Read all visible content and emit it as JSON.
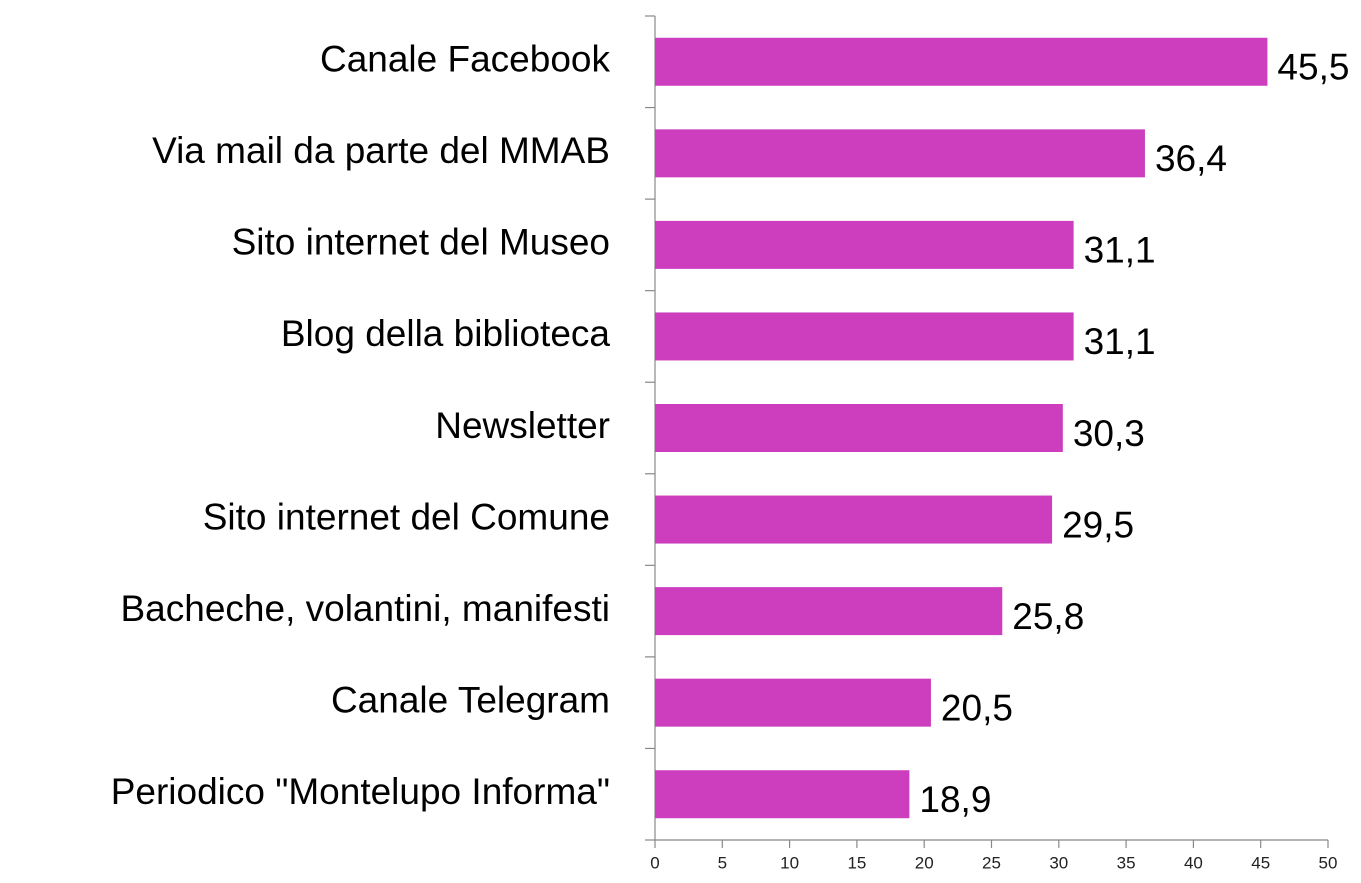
{
  "chart_data": {
    "type": "bar",
    "orientation": "horizontal",
    "categories": [
      "Canale Facebook",
      "Via mail da parte del MMAB",
      "Sito internet del Museo",
      "Blog della biblioteca",
      "Newsletter",
      "Sito internet del Comune",
      "Bacheche, volantini, manifesti",
      "Canale Telegram",
      "Periodico \"Montelupo Informa\""
    ],
    "values": [
      45.5,
      36.4,
      31.1,
      31.1,
      30.3,
      29.5,
      25.8,
      20.5,
      18.9
    ],
    "value_labels": [
      "45,5",
      "36,4",
      "31,1",
      "31,1",
      "30,3",
      "29,5",
      "25,8",
      "20,5",
      "18,9"
    ],
    "color": "#cc3ebe",
    "xlim": [
      0,
      50
    ],
    "xticks": [
      0,
      5,
      10,
      15,
      20,
      25,
      30,
      35,
      40,
      45,
      50
    ],
    "grid": false
  }
}
